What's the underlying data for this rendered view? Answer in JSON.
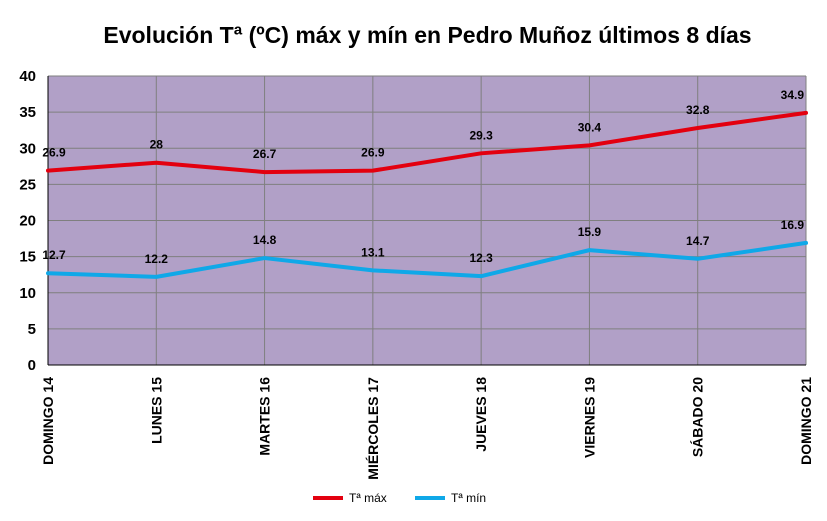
{
  "chart_data": {
    "type": "line",
    "title": "Evolución Tª (ºC) máx y mín en Pedro Muñoz últimos 8 días",
    "xlabel": "",
    "ylabel": "",
    "ylim": [
      0,
      40
    ],
    "yticks": [
      "0",
      "5",
      "10",
      "15",
      "20",
      "25",
      "30",
      "35",
      "40"
    ],
    "grid": true,
    "legend_position": "bottom",
    "plot_background": "#b1a0c7",
    "categories": [
      "DOMINGO 14",
      "LUNES 15",
      "MARTES 16",
      "MIÉRCOLES 17",
      "JUEVES 18",
      "VIERNES 19",
      "SÁBADO 20",
      "DOMINGO 21"
    ],
    "series": [
      {
        "name": "Tª máx",
        "color": "#e3000f",
        "values": [
          26.9,
          28,
          26.7,
          26.9,
          29.3,
          30.4,
          32.8,
          34.9
        ],
        "labels": [
          "26.9",
          "28",
          "26.7",
          "26.9",
          "29.3",
          "30.4",
          "32.8",
          "34.9"
        ]
      },
      {
        "name": "Tª mín",
        "color": "#0fa8e8",
        "values": [
          12.7,
          12.2,
          14.8,
          13.1,
          12.3,
          15.9,
          14.7,
          16.9
        ],
        "labels": [
          "12.7",
          "12.2",
          "14.8",
          "13.1",
          "12.3",
          "15.9",
          "14.7",
          "16.9"
        ]
      }
    ]
  }
}
